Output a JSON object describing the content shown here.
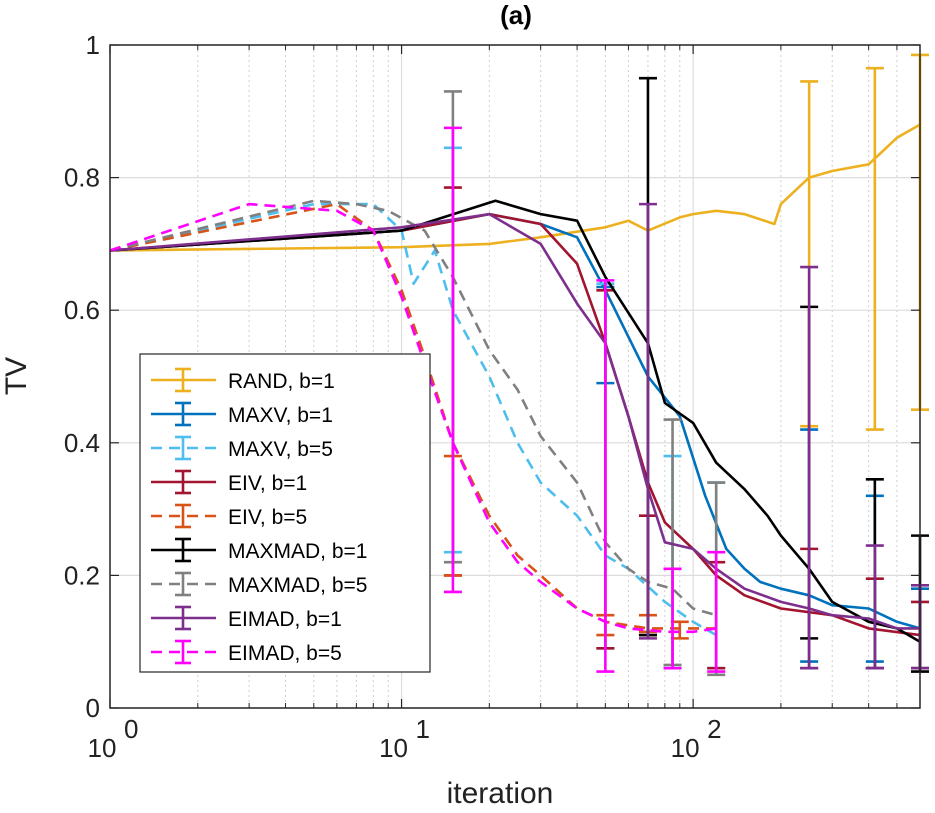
{
  "chart_data": {
    "type": "line",
    "title": "(a)",
    "xlabel": "iteration",
    "ylabel": "TV",
    "xscale": "log",
    "xlim": [
      1,
      600
    ],
    "ylim": [
      0,
      1
    ],
    "grid": true,
    "legend_position": "center-left",
    "x_ticks": [
      {
        "value": 1,
        "base": "10",
        "exp": "0"
      },
      {
        "value": 10,
        "base": "10",
        "exp": "1"
      },
      {
        "value": 100,
        "base": "10",
        "exp": "2"
      }
    ],
    "y_ticks": [
      {
        "value": 0,
        "label": "0"
      },
      {
        "value": 0.2,
        "label": "0.2"
      },
      {
        "value": 0.4,
        "label": "0.4"
      },
      {
        "value": 0.6,
        "label": "0.6"
      },
      {
        "value": 0.8,
        "label": "0.8"
      },
      {
        "value": 1,
        "label": "1"
      }
    ],
    "series": [
      {
        "name": "RAND, b=1",
        "color": "#EDB120",
        "dash": "solid",
        "points": [
          [
            1,
            0.69
          ],
          [
            10,
            0.695
          ],
          [
            20,
            0.7
          ],
          [
            30,
            0.71
          ],
          [
            50,
            0.725
          ],
          [
            60,
            0.735
          ],
          [
            70,
            0.72
          ],
          [
            90,
            0.74
          ],
          [
            100,
            0.745
          ],
          [
            120,
            0.75
          ],
          [
            150,
            0.745
          ],
          [
            190,
            0.73
          ],
          [
            200,
            0.76
          ],
          [
            250,
            0.8
          ],
          [
            300,
            0.81
          ],
          [
            400,
            0.82
          ],
          [
            500,
            0.86
          ],
          [
            600,
            0.88
          ]
        ],
        "errorbars": [
          [
            250,
            0.425,
            0.945
          ],
          [
            420,
            0.42,
            0.965
          ],
          [
            600,
            0.45,
            0.985
          ]
        ]
      },
      {
        "name": "MAXV, b=1",
        "color": "#0072BD",
        "dash": "solid",
        "points": [
          [
            1,
            0.69
          ],
          [
            10,
            0.72
          ],
          [
            20,
            0.745
          ],
          [
            30,
            0.73
          ],
          [
            40,
            0.71
          ],
          [
            50,
            0.63
          ],
          [
            70,
            0.5
          ],
          [
            90,
            0.44
          ],
          [
            110,
            0.32
          ],
          [
            130,
            0.24
          ],
          [
            150,
            0.21
          ],
          [
            170,
            0.19
          ],
          [
            200,
            0.18
          ],
          [
            250,
            0.17
          ],
          [
            300,
            0.155
          ],
          [
            400,
            0.15
          ],
          [
            500,
            0.13
          ],
          [
            600,
            0.12
          ]
        ],
        "errorbars": [
          [
            50,
            0.49,
            0.635
          ],
          [
            250,
            0.07,
            0.42
          ],
          [
            420,
            0.07,
            0.32
          ],
          [
            600,
            0.06,
            0.18
          ]
        ]
      },
      {
        "name": "MAXV, b=5",
        "color": "#4DBEEE",
        "dash": "dashed",
        "points": [
          [
            1,
            0.69
          ],
          [
            5,
            0.76
          ],
          [
            8,
            0.76
          ],
          [
            10,
            0.72
          ],
          [
            11,
            0.64
          ],
          [
            13,
            0.69
          ],
          [
            15,
            0.6
          ],
          [
            20,
            0.5
          ],
          [
            25,
            0.4
          ],
          [
            30,
            0.34
          ],
          [
            40,
            0.29
          ],
          [
            50,
            0.23
          ],
          [
            60,
            0.21
          ],
          [
            80,
            0.16
          ],
          [
            100,
            0.13
          ],
          [
            120,
            0.11
          ]
        ],
        "errorbars": [
          [
            15,
            0.235,
            0.845
          ],
          [
            50,
            0.09,
            0.64
          ],
          [
            85,
            0.06,
            0.38
          ],
          [
            120,
            0.06,
            0.34
          ]
        ]
      },
      {
        "name": "EIV, b=1",
        "color": "#A2142F",
        "dash": "solid",
        "points": [
          [
            1,
            0.69
          ],
          [
            10,
            0.72
          ],
          [
            20,
            0.745
          ],
          [
            30,
            0.73
          ],
          [
            40,
            0.67
          ],
          [
            50,
            0.55
          ],
          [
            60,
            0.44
          ],
          [
            70,
            0.34
          ],
          [
            80,
            0.28
          ],
          [
            100,
            0.24
          ],
          [
            120,
            0.2
          ],
          [
            150,
            0.17
          ],
          [
            200,
            0.15
          ],
          [
            300,
            0.14
          ],
          [
            400,
            0.12
          ],
          [
            600,
            0.11
          ]
        ],
        "errorbars": [
          [
            15,
            0.2,
            0.785
          ],
          [
            50,
            0.09,
            0.63
          ],
          [
            70,
            0.11,
            0.29
          ],
          [
            120,
            0.06,
            0.22
          ],
          [
            250,
            0.06,
            0.24
          ],
          [
            420,
            0.06,
            0.195
          ],
          [
            600,
            0.06,
            0.16
          ]
        ]
      },
      {
        "name": "EIV, b=5",
        "color": "#D95319",
        "dash": "dashed",
        "points": [
          [
            1,
            0.69
          ],
          [
            6,
            0.76
          ],
          [
            8,
            0.72
          ],
          [
            10,
            0.63
          ],
          [
            12,
            0.53
          ],
          [
            15,
            0.4
          ],
          [
            20,
            0.29
          ],
          [
            25,
            0.23
          ],
          [
            30,
            0.2
          ],
          [
            40,
            0.15
          ],
          [
            50,
            0.13
          ],
          [
            70,
            0.12
          ],
          [
            90,
            0.12
          ],
          [
            120,
            0.12
          ]
        ],
        "errorbars": [
          [
            15,
            0.2,
            0.38
          ],
          [
            50,
            0.11,
            0.14
          ],
          [
            70,
            0.115,
            0.14
          ],
          [
            90,
            0.105,
            0.13
          ]
        ]
      },
      {
        "name": "MAXMAD, b=1",
        "color": "#000000",
        "dash": "solid",
        "points": [
          [
            1,
            0.69
          ],
          [
            10,
            0.72
          ],
          [
            21,
            0.765
          ],
          [
            30,
            0.745
          ],
          [
            40,
            0.735
          ],
          [
            50,
            0.65
          ],
          [
            70,
            0.55
          ],
          [
            80,
            0.46
          ],
          [
            100,
            0.43
          ],
          [
            120,
            0.37
          ],
          [
            150,
            0.33
          ],
          [
            180,
            0.29
          ],
          [
            200,
            0.26
          ],
          [
            250,
            0.21
          ],
          [
            300,
            0.16
          ],
          [
            400,
            0.13
          ],
          [
            500,
            0.12
          ],
          [
            600,
            0.1
          ]
        ],
        "errorbars": [
          [
            70,
            0.11,
            0.95
          ],
          [
            250,
            0.105,
            0.605
          ],
          [
            420,
            0.06,
            0.345
          ],
          [
            600,
            0.055,
            0.26
          ]
        ]
      },
      {
        "name": "MAXMAD, b=5",
        "color": "#808080",
        "dash": "dashed",
        "points": [
          [
            1,
            0.69
          ],
          [
            5,
            0.765
          ],
          [
            7,
            0.76
          ],
          [
            9,
            0.75
          ],
          [
            12,
            0.72
          ],
          [
            15,
            0.65
          ],
          [
            20,
            0.54
          ],
          [
            25,
            0.48
          ],
          [
            30,
            0.41
          ],
          [
            40,
            0.34
          ],
          [
            50,
            0.25
          ],
          [
            60,
            0.21
          ],
          [
            70,
            0.19
          ],
          [
            85,
            0.18
          ],
          [
            100,
            0.15
          ],
          [
            120,
            0.14
          ]
        ],
        "errorbars": [
          [
            15,
            0.22,
            0.93
          ],
          [
            85,
            0.065,
            0.435
          ],
          [
            120,
            0.05,
            0.34
          ]
        ]
      },
      {
        "name": "EIMAD, b=1",
        "color": "#7E2F8E",
        "dash": "solid",
        "points": [
          [
            1,
            0.69
          ],
          [
            10,
            0.725
          ],
          [
            20,
            0.745
          ],
          [
            30,
            0.7
          ],
          [
            40,
            0.61
          ],
          [
            50,
            0.55
          ],
          [
            60,
            0.44
          ],
          [
            70,
            0.33
          ],
          [
            80,
            0.25
          ],
          [
            100,
            0.24
          ],
          [
            120,
            0.21
          ],
          [
            150,
            0.18
          ],
          [
            200,
            0.16
          ],
          [
            250,
            0.15
          ],
          [
            300,
            0.14
          ],
          [
            400,
            0.135
          ],
          [
            500,
            0.12
          ],
          [
            600,
            0.12
          ]
        ],
        "errorbars": [
          [
            70,
            0.105,
            0.76
          ],
          [
            250,
            0.06,
            0.665
          ],
          [
            420,
            0.06,
            0.245
          ],
          [
            600,
            0.06,
            0.185
          ]
        ]
      },
      {
        "name": "EIMAD, b=5",
        "color": "#FF00FF",
        "dash": "dashed",
        "points": [
          [
            1,
            0.69
          ],
          [
            3,
            0.76
          ],
          [
            6,
            0.75
          ],
          [
            8,
            0.72
          ],
          [
            10,
            0.62
          ],
          [
            12,
            0.52
          ],
          [
            15,
            0.4
          ],
          [
            20,
            0.28
          ],
          [
            25,
            0.22
          ],
          [
            30,
            0.19
          ],
          [
            40,
            0.15
          ],
          [
            50,
            0.13
          ],
          [
            60,
            0.12
          ],
          [
            80,
            0.115
          ],
          [
            100,
            0.115
          ],
          [
            120,
            0.12
          ]
        ],
        "errorbars": [
          [
            15,
            0.175,
            0.875
          ],
          [
            50,
            0.055,
            0.645
          ],
          [
            85,
            0.06,
            0.21
          ],
          [
            120,
            0.055,
            0.235
          ]
        ]
      }
    ]
  }
}
